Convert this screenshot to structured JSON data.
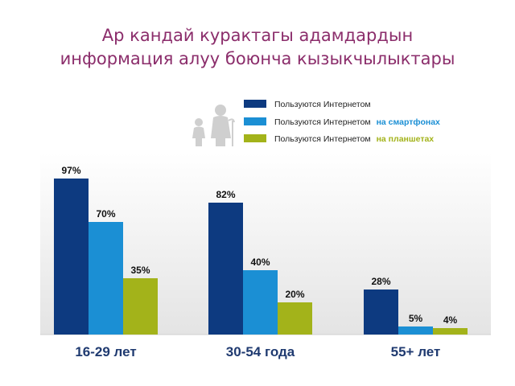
{
  "title": {
    "line1": "Ар кандай курактагы адамдардын",
    "line2": "информация алуу боюнча кызыкчылыктары"
  },
  "colors": {
    "title": "#8b2d6b",
    "series": [
      "#0d3a80",
      "#1b8fd4",
      "#a3b31a"
    ],
    "highlight_smartphone": "#1b8fd4",
    "highlight_tablet": "#a3b31a",
    "category": "#1f3a70"
  },
  "icons": [
    "elderly-person-with-cane-icon",
    "child-icon"
  ],
  "legend": [
    {
      "text": "Пользуются Интернетом",
      "highlight": ""
    },
    {
      "text": "Пользуются Интернетом",
      "highlight": "на смартфонах"
    },
    {
      "text": "Пользуются Интернетом",
      "highlight": "на планшетах"
    }
  ],
  "chart_data": {
    "type": "bar",
    "categories": [
      "16-29 лет",
      "30-54 года",
      "55+ лет"
    ],
    "series": [
      {
        "name": "Пользуются Интернетом",
        "values": [
          97,
          82,
          28
        ],
        "labels": [
          "97%",
          "82%",
          "28%"
        ]
      },
      {
        "name": "Пользуются Интернетом на смартфонах",
        "values": [
          70,
          40,
          5
        ],
        "labels": [
          "70%",
          "40%",
          "5%"
        ]
      },
      {
        "name": "Пользуются Интернетом на планшетах",
        "values": [
          35,
          20,
          4
        ],
        "labels": [
          "35%",
          "20%",
          "4%"
        ]
      }
    ],
    "ylim": [
      0,
      100
    ],
    "grid": false,
    "legend_position": "top-right"
  }
}
